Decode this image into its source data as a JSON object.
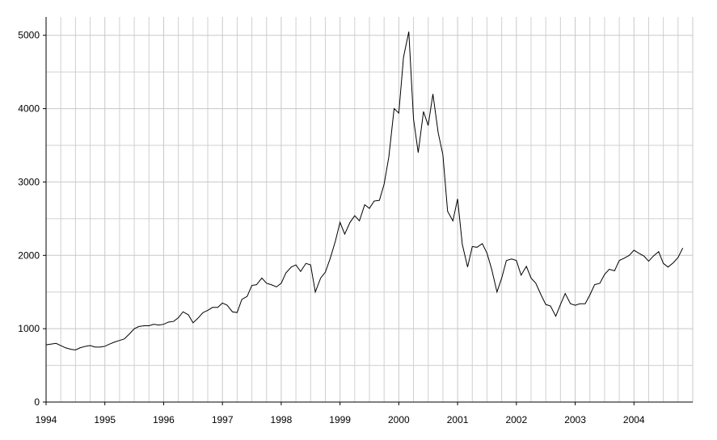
{
  "chart_data": {
    "type": "line",
    "color": "#000000",
    "grid": true,
    "xlim": [
      1994,
      2005
    ],
    "ylim": [
      0,
      5250
    ],
    "xticks": [
      1994,
      1995,
      1996,
      1997,
      1998,
      1999,
      2000,
      2001,
      2002,
      2003,
      2004
    ],
    "yticks": [
      0,
      1000,
      2000,
      3000,
      4000,
      5000
    ],
    "x": [
      1994.0,
      1994.08,
      1994.17,
      1994.25,
      1994.33,
      1994.42,
      1994.5,
      1994.58,
      1994.67,
      1994.75,
      1994.83,
      1994.92,
      1995.0,
      1995.08,
      1995.17,
      1995.25,
      1995.33,
      1995.42,
      1995.5,
      1995.58,
      1995.67,
      1995.75,
      1995.83,
      1995.92,
      1996.0,
      1996.08,
      1996.17,
      1996.25,
      1996.33,
      1996.42,
      1996.5,
      1996.58,
      1996.67,
      1996.75,
      1996.83,
      1996.92,
      1997.0,
      1997.08,
      1997.17,
      1997.25,
      1997.33,
      1997.42,
      1997.5,
      1997.58,
      1997.67,
      1997.75,
      1997.83,
      1997.92,
      1998.0,
      1998.08,
      1998.17,
      1998.25,
      1998.33,
      1998.42,
      1998.5,
      1998.58,
      1998.67,
      1998.75,
      1998.83,
      1998.92,
      1999.0,
      1999.08,
      1999.17,
      1999.25,
      1999.33,
      1999.42,
      1999.5,
      1999.58,
      1999.67,
      1999.75,
      1999.83,
      1999.92,
      2000.0,
      2000.08,
      2000.17,
      2000.25,
      2000.33,
      2000.42,
      2000.5,
      2000.58,
      2000.67,
      2000.75,
      2000.83,
      2000.92,
      2001.0,
      2001.08,
      2001.17,
      2001.25,
      2001.33,
      2001.42,
      2001.5,
      2001.58,
      2001.67,
      2001.75,
      2001.83,
      2001.92,
      2002.0,
      2002.08,
      2002.17,
      2002.25,
      2002.33,
      2002.42,
      2002.5,
      2002.58,
      2002.67,
      2002.75,
      2002.83,
      2002.92,
      2003.0,
      2003.08,
      2003.17,
      2003.25,
      2003.33,
      2003.42,
      2003.5,
      2003.58,
      2003.67,
      2003.75,
      2003.83,
      2003.92,
      2004.0,
      2004.08,
      2004.17,
      2004.25,
      2004.33,
      2004.42,
      2004.5,
      2004.58,
      2004.67,
      2004.75,
      2004.83
    ],
    "values": [
      780,
      790,
      800,
      770,
      740,
      720,
      710,
      740,
      760,
      770,
      750,
      750,
      760,
      790,
      820,
      840,
      860,
      930,
      1000,
      1030,
      1040,
      1040,
      1060,
      1050,
      1060,
      1090,
      1100,
      1150,
      1230,
      1190,
      1080,
      1140,
      1220,
      1250,
      1290,
      1290,
      1350,
      1320,
      1230,
      1220,
      1400,
      1440,
      1590,
      1600,
      1690,
      1620,
      1600,
      1570,
      1620,
      1760,
      1840,
      1870,
      1780,
      1890,
      1870,
      1500,
      1690,
      1770,
      1950,
      2190,
      2450,
      2290,
      2450,
      2540,
      2470,
      2690,
      2640,
      2740,
      2750,
      2970,
      3340,
      4000,
      3940,
      4700,
      5050,
      3860,
      3400,
      3960,
      3770,
      4200,
      3670,
      3370,
      2600,
      2470,
      2770,
      2150,
      1840,
      2120,
      2110,
      2160,
      2030,
      1810,
      1500,
      1690,
      1930,
      1950,
      1930,
      1730,
      1850,
      1690,
      1620,
      1460,
      1330,
      1310,
      1170,
      1330,
      1480,
      1340,
      1320,
      1340,
      1340,
      1460,
      1600,
      1620,
      1740,
      1810,
      1790,
      1930,
      1960,
      2000,
      2070,
      2030,
      1990,
      1920,
      1990,
      2050,
      1890,
      1840,
      1900,
      1970,
      2100
    ]
  }
}
